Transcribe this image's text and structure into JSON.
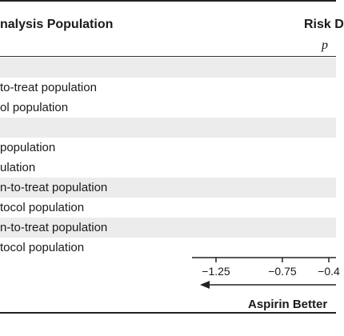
{
  "chart_data": {
    "type": "forest",
    "header": {
      "left": "nalysis Population",
      "right": "Risk D",
      "right_sub": "p"
    },
    "rows": [
      {
        "label": "",
        "shaded": true
      },
      {
        "label": "to-treat population",
        "shaded": false
      },
      {
        "label": "ol population",
        "shaded": false
      },
      {
        "label": "",
        "shaded": true
      },
      {
        "label": "population",
        "shaded": false
      },
      {
        "label": "ulation",
        "shaded": false
      },
      {
        "label": "n-to-treat population",
        "shaded": true
      },
      {
        "label": "tocol population",
        "shaded": false
      },
      {
        "label": "n-to-treat population",
        "shaded": true
      },
      {
        "label": "tocol population",
        "shaded": false
      }
    ],
    "x_axis": {
      "ticks": [
        -1.25,
        -0.75,
        -0.4
      ],
      "tick_labels": [
        "−1.25",
        "−0.75",
        "−0.4"
      ],
      "xlim": [
        -1.25,
        -0.4
      ],
      "direction_label": "Aspirin Better"
    }
  }
}
